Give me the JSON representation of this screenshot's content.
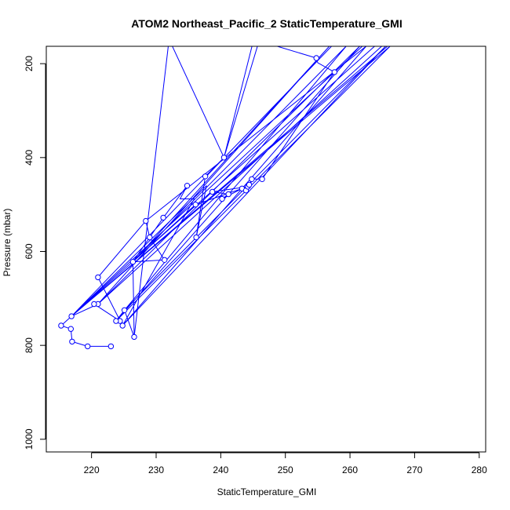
{
  "chart_data": {
    "type": "line",
    "title": "ATOM2 Northeast_Pacific_2 StaticTemperature_GMI",
    "xlabel": "StaticTemperature_GMI",
    "ylabel": "Pressure (mbar)",
    "xlim": [
      213,
      281
    ],
    "ylim": [
      1027,
      163
    ],
    "y_reversed": true,
    "grid": false,
    "line_color": "#0000ff",
    "x_ticks": [
      "220",
      "230",
      "240",
      "250",
      "260",
      "270",
      "280"
    ],
    "y_ticks": [
      "200",
      "400",
      "600",
      "800",
      "1000"
    ],
    "series": [
      {
        "points": [
          [
            223.0,
            802
          ],
          [
            219.4,
            802
          ],
          [
            217.0,
            792
          ],
          [
            216.8,
            765
          ],
          [
            215.3,
            758
          ],
          [
            216.9,
            738
          ],
          [
            221.0,
            712
          ],
          [
            220.4,
            712
          ],
          [
            224.4,
            748
          ],
          [
            223.8,
            748
          ],
          [
            225.1,
            725
          ],
          [
            226.6,
            782
          ],
          [
            226.4,
            622
          ],
          [
            231.3,
            618
          ],
          [
            229.0,
            570
          ],
          [
            228.4,
            535
          ],
          [
            221.0,
            655
          ],
          [
            224.8,
            758
          ],
          [
            235.9,
            488
          ],
          [
            233.7,
            488
          ],
          [
            234.8,
            460
          ],
          [
            231.1,
            528
          ],
          [
            226.4,
            622
          ],
          [
            236.1,
            500
          ],
          [
            244.2,
            462
          ],
          [
            238.7,
            473
          ],
          [
            241.2,
            478
          ],
          [
            240.2,
            488
          ],
          [
            243.3,
            466
          ],
          [
            243.9,
            470
          ],
          [
            244.4,
            458
          ],
          [
            244.8,
            446
          ],
          [
            246.4,
            446
          ],
          [
            257.6,
            218
          ],
          [
            255.0,
            198
          ],
          [
            254.8,
            188
          ],
          [
            245.1,
            148
          ],
          [
            240.5,
            400
          ],
          [
            237.6,
            440
          ],
          [
            236.2,
            570
          ],
          [
            237.8,
            460
          ],
          [
            216.9,
            738
          ],
          [
            258.2,
            148
          ],
          [
            265.8,
            163
          ],
          [
            216.9,
            738
          ],
          [
            263.8,
            163
          ],
          [
            216.9,
            738
          ],
          [
            261.9,
            163
          ],
          [
            216.9,
            738
          ],
          [
            266.2,
            163
          ],
          [
            223.8,
            748
          ],
          [
            261.5,
            163
          ],
          [
            221.0,
            712
          ],
          [
            264.9,
            163
          ],
          [
            221.0,
            712
          ],
          [
            256.8,
            163
          ],
          [
            226.4,
            622
          ],
          [
            259.4,
            163
          ],
          [
            225.1,
            725
          ],
          [
            265.5,
            163
          ],
          [
            224.8,
            758
          ],
          [
            262.5,
            163
          ],
          [
            228.4,
            535
          ]
        ]
      },
      {
        "points": [
          [
            226.6,
            782
          ],
          [
            232.0,
            148
          ],
          [
            240.5,
            400
          ],
          [
            246.0,
            148
          ]
        ]
      }
    ],
    "markers": [
      [
        223.0,
        802
      ],
      [
        219.4,
        802
      ],
      [
        217.0,
        792
      ],
      [
        216.8,
        765
      ],
      [
        215.3,
        758
      ],
      [
        216.9,
        738
      ],
      [
        221.0,
        712
      ],
      [
        220.4,
        712
      ],
      [
        224.4,
        748
      ],
      [
        223.8,
        748
      ],
      [
        224.8,
        758
      ],
      [
        225.1,
        725
      ],
      [
        226.6,
        782
      ],
      [
        226.4,
        622
      ],
      [
        221.0,
        655
      ],
      [
        231.3,
        618
      ],
      [
        229.0,
        570
      ],
      [
        228.4,
        535
      ],
      [
        231.1,
        528
      ],
      [
        234.8,
        460
      ],
      [
        236.1,
        500
      ],
      [
        236.2,
        570
      ],
      [
        237.6,
        440
      ],
      [
        238.7,
        473
      ],
      [
        240.5,
        400
      ],
      [
        240.2,
        488
      ],
      [
        241.2,
        478
      ],
      [
        243.3,
        466
      ],
      [
        243.9,
        470
      ],
      [
        244.2,
        462
      ],
      [
        244.4,
        458
      ],
      [
        244.8,
        446
      ],
      [
        246.4,
        446
      ],
      [
        254.8,
        188
      ],
      [
        257.6,
        218
      ]
    ]
  }
}
